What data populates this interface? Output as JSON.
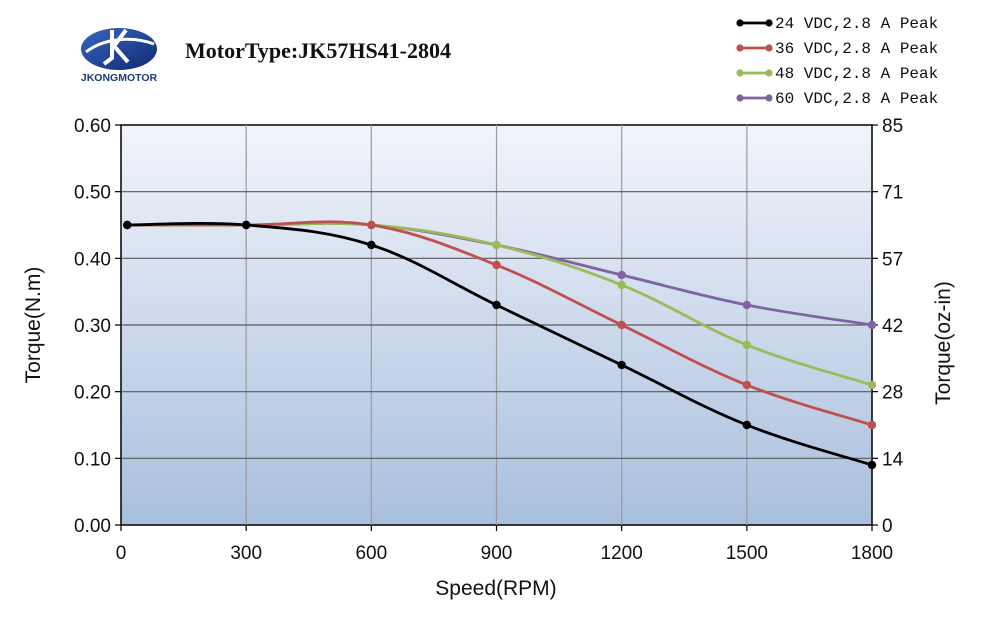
{
  "brand": {
    "name": "JKONGMOTOR"
  },
  "chart_data": {
    "type": "line",
    "title": "MotorType:JK57HS41-2804",
    "xlabel": "Speed(RPM)",
    "ylabel": "Torque(N.m)",
    "y2label": "Torque(oz-in)",
    "xlim": [
      0,
      1800
    ],
    "ylim": [
      0,
      0.6
    ],
    "x_ticks": [
      "0",
      "300",
      "600",
      "900",
      "1200",
      "1500",
      "1800"
    ],
    "y_ticks": [
      "0.00",
      "0.10",
      "0.20",
      "0.30",
      "0.40",
      "0.50",
      "0.60"
    ],
    "y2_ticks": [
      "0",
      "14",
      "28",
      "42",
      "57",
      "71",
      "85"
    ],
    "grid": true,
    "legend_position": "top-right",
    "series": [
      {
        "name": "24 VDC,2.8 A Peak",
        "color": "#000000",
        "points": [
          [
            15,
            0.45
          ],
          [
            300,
            0.45
          ],
          [
            600,
            0.42
          ],
          [
            900,
            0.33
          ],
          [
            1200,
            0.24
          ],
          [
            1500,
            0.15
          ],
          [
            1800,
            0.09
          ]
        ]
      },
      {
        "name": "36 VDC,2.8 A Peak",
        "color": "#c0504d",
        "points": [
          [
            15,
            0.45
          ],
          [
            300,
            0.45
          ],
          [
            600,
            0.45
          ],
          [
            900,
            0.39
          ],
          [
            1200,
            0.3
          ],
          [
            1500,
            0.21
          ],
          [
            1800,
            0.15
          ]
        ]
      },
      {
        "name": "48 VDC,2.8 A Peak",
        "color": "#9bbb59",
        "points": [
          [
            15,
            0.45
          ],
          [
            300,
            0.45
          ],
          [
            600,
            0.45
          ],
          [
            900,
            0.42
          ],
          [
            1200,
            0.36
          ],
          [
            1500,
            0.27
          ],
          [
            1800,
            0.21
          ]
        ]
      },
      {
        "name": "60 VDC,2.8 A Peak",
        "color": "#8064a2",
        "points": [
          [
            15,
            0.45
          ],
          [
            300,
            0.45
          ],
          [
            600,
            0.45
          ],
          [
            900,
            0.42
          ],
          [
            1200,
            0.375
          ],
          [
            1500,
            0.33
          ],
          [
            1800,
            0.3
          ]
        ]
      }
    ]
  }
}
